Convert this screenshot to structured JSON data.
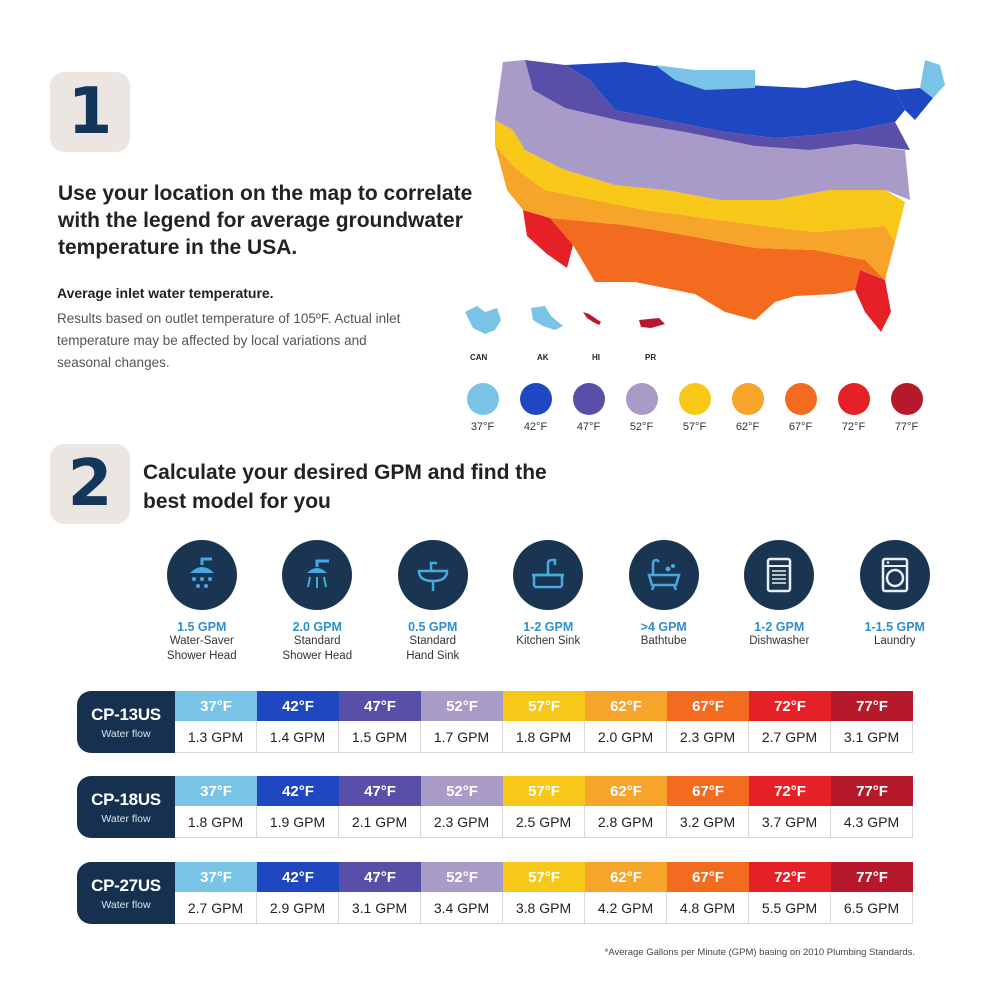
{
  "step1": {
    "number": "1",
    "headline": "Use your location on the map to correlate with the legend for average groundwater temperature in the USA.",
    "subhead": "Average inlet water temperature.",
    "note": "Results based on outlet temperature of 105ºF. Actual inlet temperature may be affected by local variations and seasonal changes."
  },
  "map": {
    "territories": [
      "CAN",
      "AK",
      "HI",
      "PR"
    ]
  },
  "legend": [
    {
      "label": "37°F",
      "color": "#79c3e6"
    },
    {
      "label": "42°F",
      "color": "#1f47c2"
    },
    {
      "label": "47°F",
      "color": "#5a4fa8"
    },
    {
      "label": "52°F",
      "color": "#a99bc8"
    },
    {
      "label": "57°F",
      "color": "#f8c818"
    },
    {
      "label": "62°F",
      "color": "#f6a42a"
    },
    {
      "label": "67°F",
      "color": "#f36b1f"
    },
    {
      "label": "72°F",
      "color": "#e52127"
    },
    {
      "label": "77°F",
      "color": "#b5192a"
    }
  ],
  "step2": {
    "number": "2",
    "title": "Calculate your desired GPM and find the best model for you"
  },
  "uses": [
    {
      "gpm": "1.5 GPM",
      "name1": "Water-Saver",
      "name2": "Shower Head",
      "icon": "shower-head-icon"
    },
    {
      "gpm": "2.0 GPM",
      "name1": "Standard",
      "name2": "Shower Head",
      "icon": "shower-icon"
    },
    {
      "gpm": "0.5 GPM",
      "name1": "Standard",
      "name2": "Hand Sink",
      "icon": "hand-sink-icon"
    },
    {
      "gpm": "1-2 GPM",
      "name1": "Kitchen Sink",
      "name2": "",
      "icon": "kitchen-sink-icon"
    },
    {
      "gpm": ">4 GPM",
      "name1": "Bathtube",
      "name2": "",
      "icon": "bathtub-icon"
    },
    {
      "gpm": "1-2 GPM",
      "name1": "Dishwasher",
      "name2": "",
      "icon": "dishwasher-icon"
    },
    {
      "gpm": "1-1.5 GPM",
      "name1": "Laundry",
      "name2": "",
      "icon": "laundry-icon"
    }
  ],
  "models": [
    {
      "name": "CP-13US",
      "subtitle": "Water flow",
      "values": [
        "1.3 GPM",
        "1.4 GPM",
        "1.5 GPM",
        "1.7 GPM",
        "1.8 GPM",
        "2.0 GPM",
        "2.3 GPM",
        "2.7 GPM",
        "3.1 GPM"
      ]
    },
    {
      "name": "CP-18US",
      "subtitle": "Water flow",
      "values": [
        "1.8 GPM",
        "1.9 GPM",
        "2.1 GPM",
        "2.3 GPM",
        "2.5 GPM",
        "2.8 GPM",
        "3.2 GPM",
        "3.7 GPM",
        "4.3 GPM"
      ]
    },
    {
      "name": "CP-27US",
      "subtitle": "Water flow",
      "values": [
        "2.7 GPM",
        "2.9 GPM",
        "3.1 GPM",
        "3.4 GPM",
        "3.8 GPM",
        "4.2 GPM",
        "4.8 GPM",
        "5.5 GPM",
        "6.5 GPM"
      ]
    }
  ],
  "footnote": "*Average Gallons per Minute (GPM) basing on 2010 Plumbing Standards."
}
